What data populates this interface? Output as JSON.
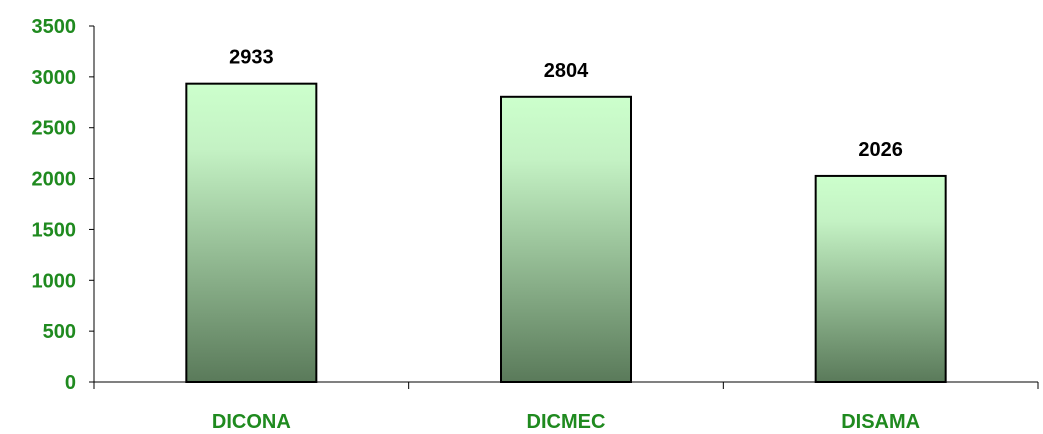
{
  "chart_data": {
    "type": "bar",
    "categories": [
      "DICONA",
      "DICMEC",
      "DISAMA"
    ],
    "values": [
      2933,
      2804,
      2026
    ],
    "data_labels": [
      "2933",
      "2804",
      "2026"
    ],
    "title": "",
    "xlabel": "",
    "ylabel": "",
    "ylim": [
      0,
      3500
    ],
    "yticks": [
      0,
      500,
      1000,
      1500,
      2000,
      2500,
      3000,
      3500
    ],
    "ytick_labels": [
      "0",
      "500",
      "1000",
      "1500",
      "2000",
      "2500",
      "3000",
      "3500"
    ],
    "grid": false,
    "legend": "none",
    "colors": {
      "bar_top": "#ccffcc",
      "bar_bottom": "#5a7a5a",
      "bar_stroke": "#000000",
      "axis_label": "#1f8a1f",
      "data_label": "#000000"
    }
  }
}
